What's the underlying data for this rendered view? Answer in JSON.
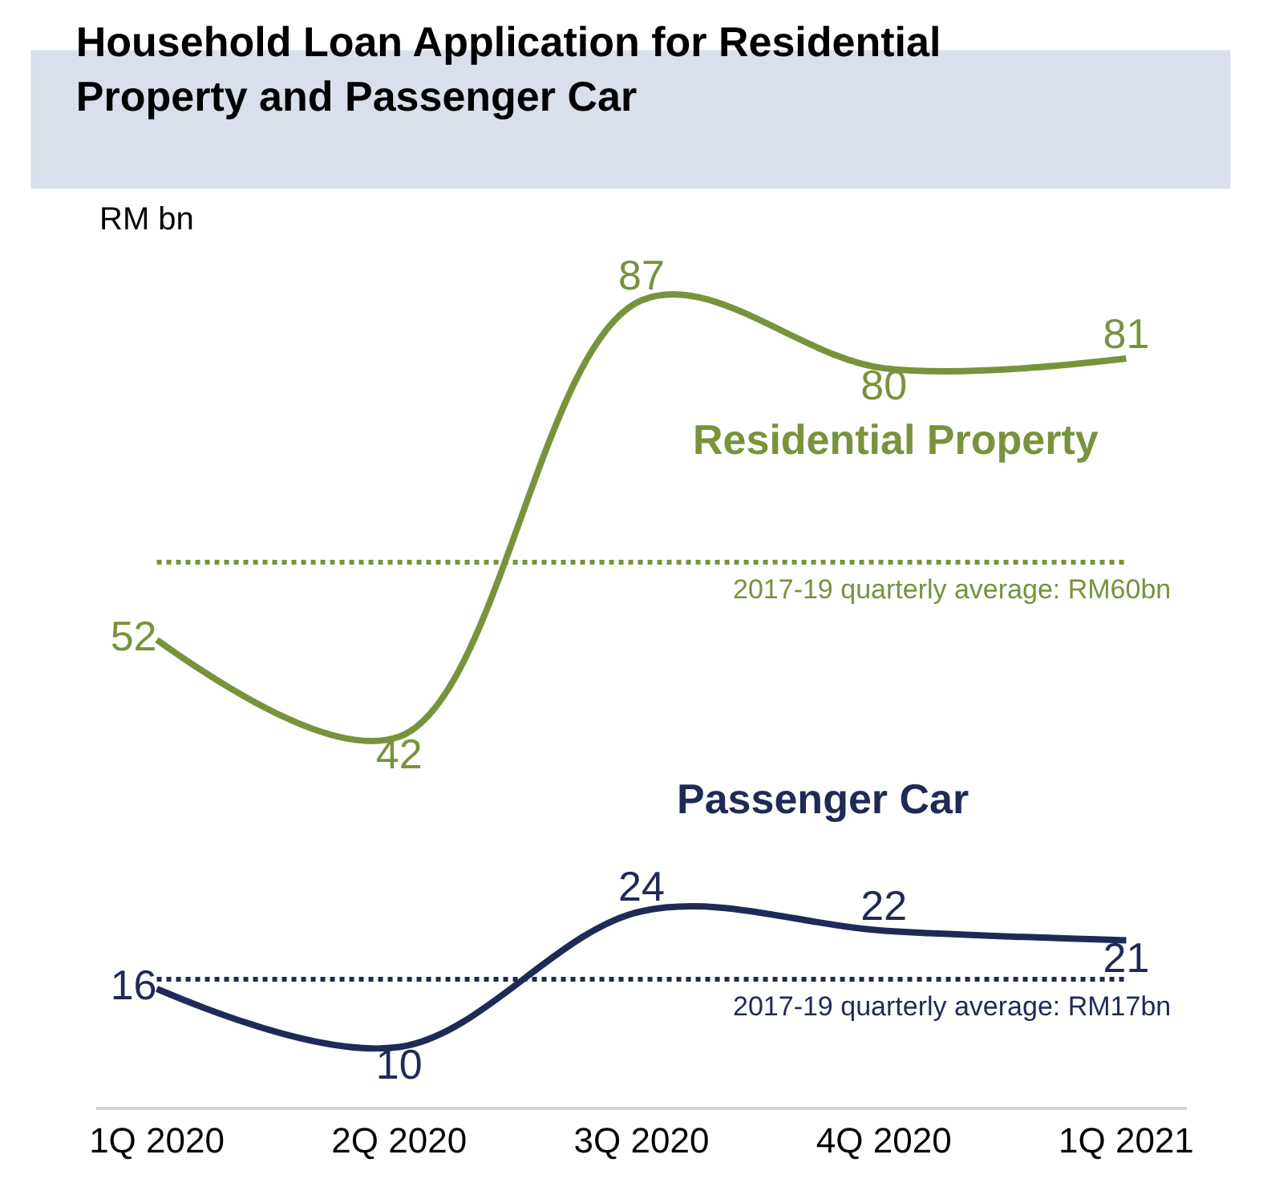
{
  "chart_data": {
    "type": "line",
    "title": "Household Loan Application for Residential\nProperty and Passenger Car",
    "ylabel": "RM bn",
    "categories": [
      "1Q 2020",
      "2Q 2020",
      "3Q 2020",
      "4Q 2020",
      "1Q 2021"
    ],
    "series": [
      {
        "name": "Residential Property",
        "color": "#77933c",
        "values": [
          52,
          42,
          87,
          80,
          81
        ]
      },
      {
        "name": "Passenger Car",
        "color": "#1f2a56",
        "values": [
          16,
          10,
          24,
          22,
          21
        ]
      }
    ],
    "data_labels": true,
    "legend": false,
    "marker": "none",
    "line_style": "solid",
    "ref_lines": [
      {
        "axis": "y",
        "value": 60,
        "label": "2017-19 quarterly average: RM60bn",
        "color": "#77933c",
        "line_style": "dotted"
      },
      {
        "axis": "y",
        "value": 17,
        "label": "2017-19 quarterly average: RM17bn",
        "color": "#1f2a56",
        "line_style": "dotted"
      }
    ]
  }
}
